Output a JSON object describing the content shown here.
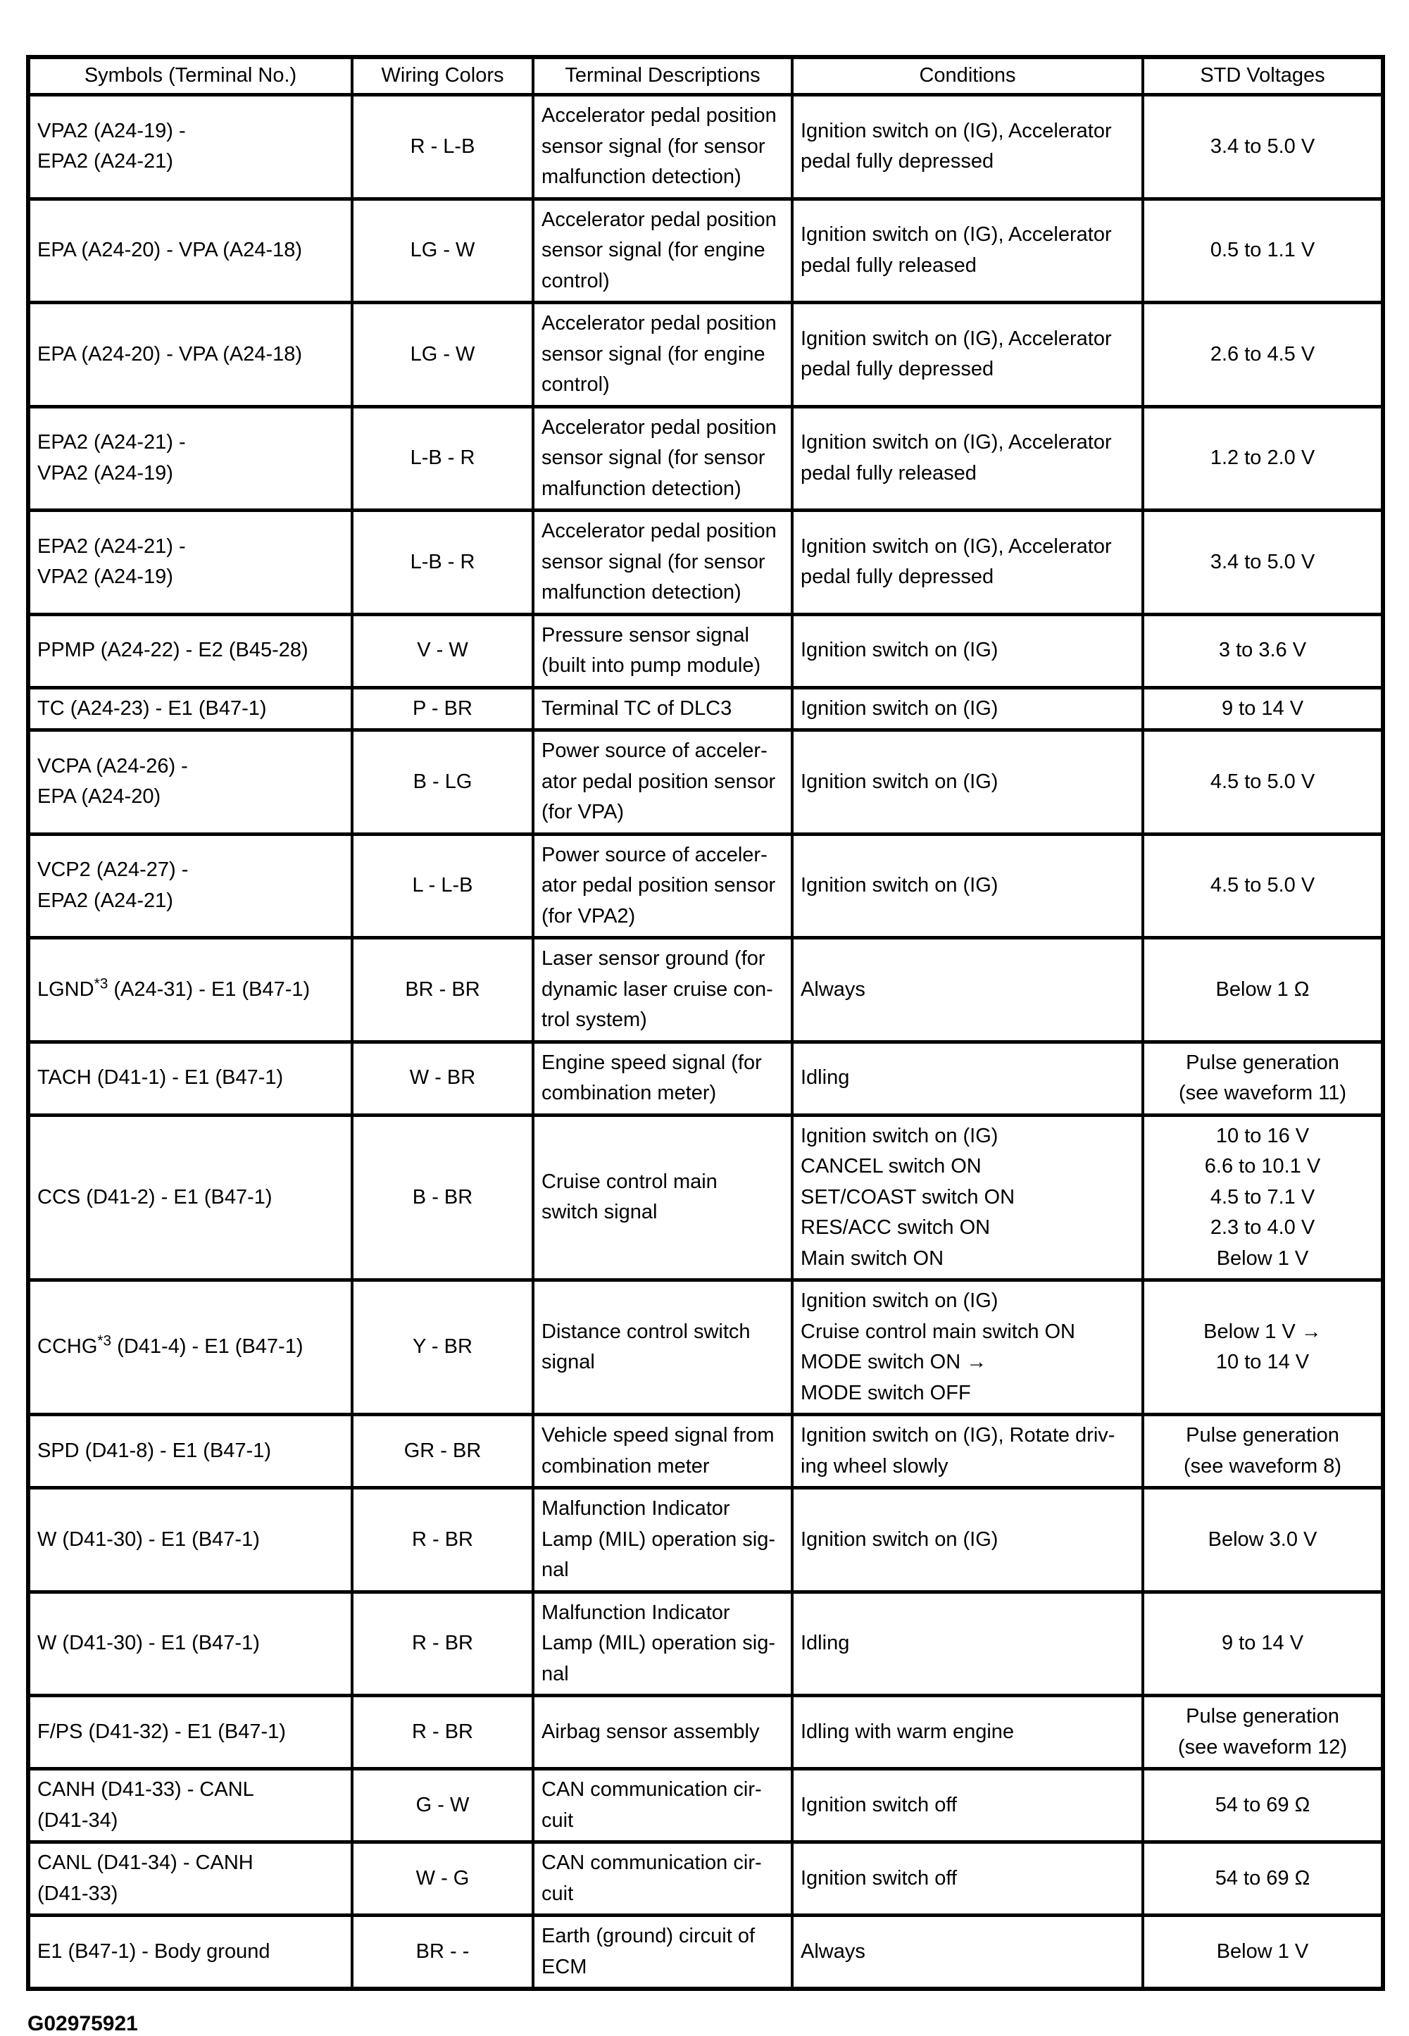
{
  "table": {
    "columns": [
      "Symbols (Terminal No.)",
      "Wiring Colors",
      "Terminal Descriptions",
      "Conditions",
      "STD Voltages"
    ],
    "rows": [
      {
        "symbol": "VPA2 (A24-19) -\nEPA2 (A24-21)",
        "wiring": "R - L-B",
        "description": "Accelerator pedal position\nsensor signal (for sensor\nmalfunction detection)",
        "conditions": "Ignition switch on (IG), Accelerator\npedal fully depressed",
        "std": "3.4 to 5.0 V"
      },
      {
        "symbol": "EPA (A24-20) - VPA (A24-18)",
        "wiring": "LG - W",
        "description": "Accelerator pedal position\nsensor signal (for engine\ncontrol)",
        "conditions": "Ignition switch on (IG), Accelerator\npedal fully released",
        "std": "0.5 to 1.1 V"
      },
      {
        "symbol": "EPA (A24-20) - VPA (A24-18)",
        "wiring": "LG - W",
        "description": "Accelerator pedal position\nsensor signal (for engine\ncontrol)",
        "conditions": "Ignition switch on (IG), Accelerator\npedal fully depressed",
        "std": "2.6 to 4.5 V"
      },
      {
        "symbol": "EPA2 (A24-21) -\nVPA2 (A24-19)",
        "wiring": "L-B - R",
        "description": "Accelerator pedal position\nsensor signal (for sensor\nmalfunction detection)",
        "conditions": "Ignition switch on (IG), Accelerator\npedal fully released",
        "std": "1.2 to 2.0 V"
      },
      {
        "symbol": "EPA2 (A24-21) -\nVPA2 (A24-19)",
        "wiring": "L-B - R",
        "description": "Accelerator pedal position\nsensor signal (for sensor\nmalfunction detection)",
        "conditions": "Ignition switch on (IG), Accelerator\npedal fully depressed",
        "std": "3.4 to 5.0 V"
      },
      {
        "symbol": "PPMP (A24-22) - E2 (B45-28)",
        "wiring": "V - W",
        "description": "Pressure sensor signal\n(built into pump module)",
        "conditions": "Ignition switch on (IG)",
        "std": "3 to 3.6 V"
      },
      {
        "symbol": "TC (A24-23) - E1 (B47-1)",
        "wiring": "P - BR",
        "description": "Terminal TC of DLC3",
        "conditions": "Ignition switch on (IG)",
        "std": "9 to 14 V"
      },
      {
        "symbol": "VCPA (A24-26) -\nEPA (A24-20)",
        "wiring": "B - LG",
        "description": "Power source of acceler-\nator pedal position sensor\n(for VPA)",
        "conditions": "Ignition switch on (IG)",
        "std": "4.5 to 5.0 V"
      },
      {
        "symbol": "VCP2 (A24-27) -\nEPA2 (A24-21)",
        "wiring": "L - L-B",
        "description": "Power source of acceler-\nator pedal position sensor\n(for VPA2)",
        "conditions": "Ignition switch on (IG)",
        "std": "4.5 to 5.0 V"
      },
      {
        "symbol": "LGND^{*3} (A24-31) - E1 (B47-1)",
        "wiring": "BR - BR",
        "description": "Laser sensor ground (for\ndynamic laser cruise con-\ntrol system)",
        "conditions": "Always",
        "std": "Below 1 Ω"
      },
      {
        "symbol": "TACH (D41-1) - E1 (B47-1)",
        "wiring": "W - BR",
        "description": "Engine speed signal (for\ncombination meter)",
        "conditions": "Idling",
        "std": "Pulse generation\n(see waveform 11)"
      },
      {
        "symbol": "CCS (D41-2) - E1 (B47-1)",
        "wiring": "B - BR",
        "description": "Cruise control main\nswitch signal",
        "conditions": "Ignition switch on (IG)\nCANCEL switch ON\nSET/COAST switch ON\nRES/ACC switch ON\nMain switch ON",
        "std": "10 to 16 V\n6.6 to 10.1 V\n4.5 to 7.1 V\n2.3 to 4.0 V\nBelow 1 V"
      },
      {
        "symbol": "CCHG^{*3} (D41-4) - E1 (B47-1)",
        "wiring": "Y - BR",
        "description": "Distance control switch\nsignal",
        "conditions": "Ignition switch on (IG)\nCruise control main switch ON\nMODE switch ON →\nMODE switch OFF",
        "std": "Below 1 V →\n10 to 14 V"
      },
      {
        "symbol": "SPD (D41-8) - E1 (B47-1)",
        "wiring": "GR - BR",
        "description": "Vehicle speed signal from\ncombination meter",
        "conditions": "Ignition switch on (IG), Rotate driv-\ning wheel slowly",
        "std": "Pulse generation\n(see waveform 8)"
      },
      {
        "symbol": "W (D41-30) - E1 (B47-1)",
        "wiring": "R - BR",
        "description": "Malfunction Indicator\nLamp (MIL) operation sig-\nnal",
        "conditions": "Ignition switch on (IG)",
        "std": "Below 3.0 V"
      },
      {
        "symbol": "W (D41-30) - E1 (B47-1)",
        "wiring": "R - BR",
        "description": "Malfunction Indicator\nLamp (MIL) operation sig-\nnal",
        "conditions": "Idling",
        "std": "9 to 14 V"
      },
      {
        "symbol": "F/PS (D41-32) - E1 (B47-1)",
        "wiring": "R - BR",
        "description": "Airbag sensor assembly",
        "conditions": "Idling with warm engine",
        "std": "Pulse generation\n(see waveform 12)"
      },
      {
        "symbol": "CANH (D41-33) - CANL\n(D41-34)",
        "wiring": "G - W",
        "description": "CAN communication cir-\ncuit",
        "conditions": "Ignition switch off",
        "std": "54 to 69 Ω"
      },
      {
        "symbol": "CANL (D41-34) - CANH\n(D41-33)",
        "wiring": "W - G",
        "description": "CAN communication cir-\ncuit",
        "conditions": "Ignition switch off",
        "std": "54 to 69 Ω"
      },
      {
        "symbol": "E1 (B47-1) - Body ground",
        "wiring": "BR - -",
        "description": "Earth (ground) circuit of\nECM",
        "conditions": "Always",
        "std": "Below 1 V"
      }
    ]
  },
  "footer": {
    "figure_id": "G02975921"
  }
}
